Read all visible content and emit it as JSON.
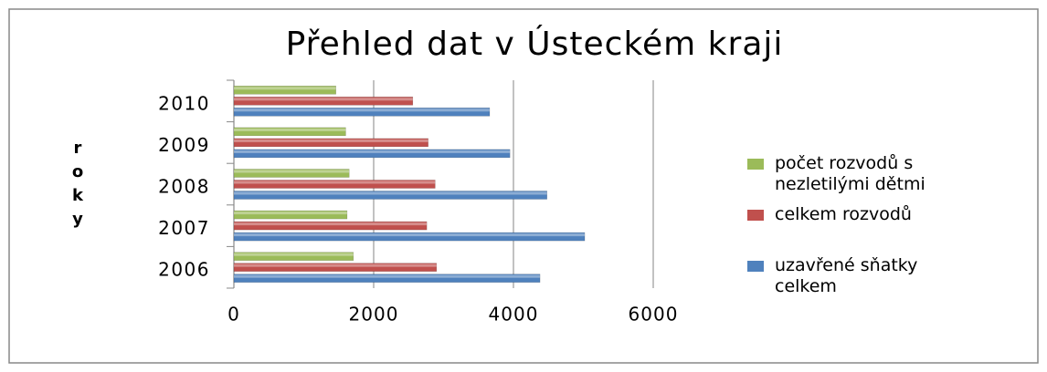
{
  "chart_data": {
    "type": "hbar",
    "title": "Přehled dat v Ústeckém kraji",
    "y_label": "roky",
    "categories": [
      "2006",
      "2007",
      "2008",
      "2009",
      "2010"
    ],
    "series": [
      {
        "name": "uzavřené sňatky celkem",
        "color": "#4f81bd",
        "values": [
          4380,
          5020,
          4480,
          3950,
          3660
        ]
      },
      {
        "name": "celkem rozvodů",
        "color": "#c0504d",
        "values": [
          2900,
          2760,
          2880,
          2780,
          2560
        ]
      },
      {
        "name": "počet rozvodů s nezletilými dětmi",
        "color": "#9bbb59",
        "values": [
          1710,
          1620,
          1650,
          1600,
          1460
        ]
      }
    ],
    "xlim": [
      0,
      6000
    ],
    "xticks": [
      0,
      2000,
      4000,
      6000
    ],
    "grid": true,
    "legend": "right"
  }
}
